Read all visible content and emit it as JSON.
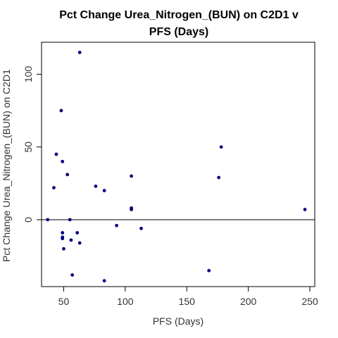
{
  "chart_data": {
    "type": "scatter",
    "title_lines": [
      "Pct Change Urea_Nitrogen_(BUN) on C2D1 v",
      "PFS (Days)"
    ],
    "xlabel": "PFS (Days)",
    "ylabel": "Pct Change Urea_Nitrogen_(BUN) on C2D1",
    "xlim": [
      32,
      254
    ],
    "ylim": [
      -46,
      122
    ],
    "x_ticks": [
      50,
      100,
      150,
      200,
      250
    ],
    "y_ticks": [
      0,
      50,
      100
    ],
    "x_tick_labels": [
      "50",
      "100",
      "150",
      "200",
      "250"
    ],
    "y_tick_labels": [
      "0",
      "50",
      "100"
    ],
    "reference_line_y": 0,
    "grid": false,
    "point_color": "#00007f",
    "points": [
      {
        "x": 37,
        "y": 0
      },
      {
        "x": 42,
        "y": 22
      },
      {
        "x": 44,
        "y": 45
      },
      {
        "x": 48,
        "y": 75
      },
      {
        "x": 49,
        "y": -9
      },
      {
        "x": 49,
        "y": -12
      },
      {
        "x": 49,
        "y": -13
      },
      {
        "x": 49,
        "y": 40
      },
      {
        "x": 50,
        "y": -20
      },
      {
        "x": 53,
        "y": 31
      },
      {
        "x": 55,
        "y": 0
      },
      {
        "x": 56,
        "y": -14
      },
      {
        "x": 57,
        "y": -38
      },
      {
        "x": 61,
        "y": -9
      },
      {
        "x": 63,
        "y": 115
      },
      {
        "x": 63,
        "y": -16
      },
      {
        "x": 76,
        "y": 23
      },
      {
        "x": 83,
        "y": 20
      },
      {
        "x": 83,
        "y": -42
      },
      {
        "x": 93,
        "y": -4
      },
      {
        "x": 105,
        "y": 30
      },
      {
        "x": 105,
        "y": 8
      },
      {
        "x": 105,
        "y": 7
      },
      {
        "x": 113,
        "y": -6
      },
      {
        "x": 168,
        "y": -35
      },
      {
        "x": 176,
        "y": 29
      },
      {
        "x": 178,
        "y": 50
      },
      {
        "x": 246,
        "y": 7
      }
    ]
  }
}
